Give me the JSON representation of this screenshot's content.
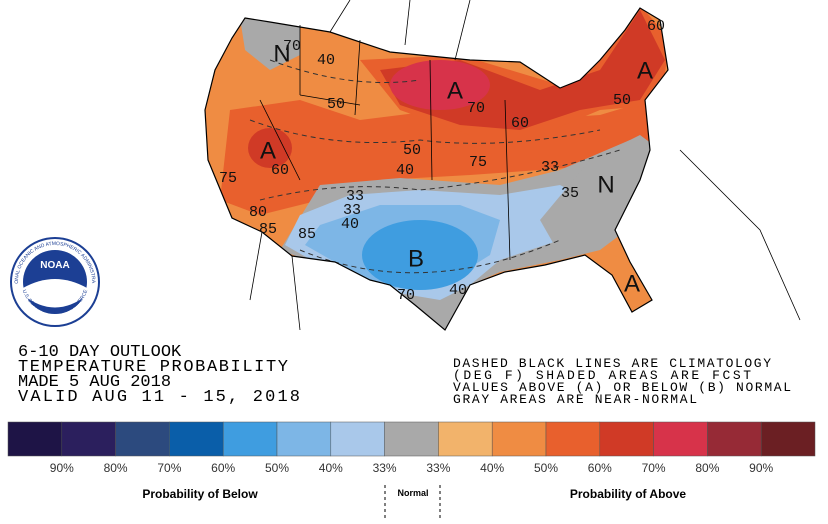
{
  "logo": {
    "name": "NOAA",
    "ring_top": "NATIONAL OCEANIC AND ATMOSPHERIC ADMINISTRATION",
    "ring_bottom": "U.S. DEPARTMENT OF COMMERCE"
  },
  "outlook": {
    "lines": [
      "6-10 DAY OUTLOOK",
      "TEMPERATURE PROBABILITY",
      "MADE  5 AUG 2018",
      "VALID  AUG 11 - 15, 2018"
    ]
  },
  "notes": [
    "DASHED BLACK LINES ARE CLIMATOLOGY",
    "(DEG F) SHADED AREAS ARE FCST",
    "VALUES ABOVE (A) OR BELOW (B) NORMAL",
    "GRAY AREAS ARE NEAR-NORMAL"
  ],
  "map_labels": [
    "N",
    "70",
    "40",
    "50",
    "A",
    "70",
    "60",
    "60",
    "A",
    "50",
    "A",
    "60",
    "75",
    "50",
    "40",
    "75",
    "33",
    "33",
    "40",
    "80",
    "85",
    "85",
    "B",
    "40",
    "70",
    "33",
    "35",
    "N",
    "A"
  ],
  "legend": {
    "labels": [
      "90%",
      "80%",
      "70%",
      "60%",
      "50%",
      "40%",
      "33%",
      "33%",
      "40%",
      "50%",
      "60%",
      "70%",
      "80%",
      "90%"
    ],
    "below": "Probability of Below",
    "normal": "Normal",
    "above": "Probability of Above"
  }
}
